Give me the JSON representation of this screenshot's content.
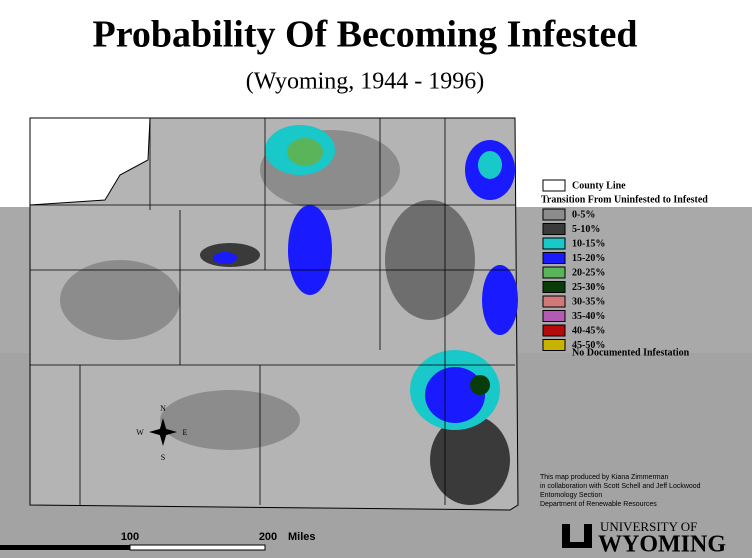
{
  "header": {
    "title": "Probability Of Becoming Infested",
    "subtitle": "(Wyoming, 1944 - 1996)"
  },
  "legend": {
    "county_line": "County Line",
    "heading": "Transition From Uninfested to Infested",
    "items": [
      {
        "label": "0-5%",
        "color": "#8c8c8c"
      },
      {
        "label": "5-10%",
        "color": "#3a3a3a"
      },
      {
        "label": "10-15%",
        "color": "#19c8c8"
      },
      {
        "label": "15-20%",
        "color": "#1a1aff"
      },
      {
        "label": "20-25%",
        "color": "#5ab45a"
      },
      {
        "label": "25-30%",
        "color": "#0a3c0a"
      },
      {
        "label": "30-35%",
        "color": "#d27878"
      },
      {
        "label": "35-40%",
        "color": "#b45ab4"
      },
      {
        "label": "40-45%",
        "color": "#b40a0a"
      },
      {
        "label": "45-50%",
        "color": "#c8b400"
      }
    ],
    "none": "No Documented Infestation"
  },
  "compass": {
    "n": "N",
    "s": "S",
    "e": "E",
    "w": "W"
  },
  "credits": [
    "This map produced by Kiana Zimmerman",
    "in collaboration with Scott Schell and Jeff Lockwood",
    "Entomology Section",
    "Department of Renewable Resources"
  ],
  "scale": {
    "mid": "100",
    "end": "200",
    "unit": "Miles"
  },
  "logo": {
    "top": "UNIVERSITY OF",
    "main": "WYOMING"
  }
}
